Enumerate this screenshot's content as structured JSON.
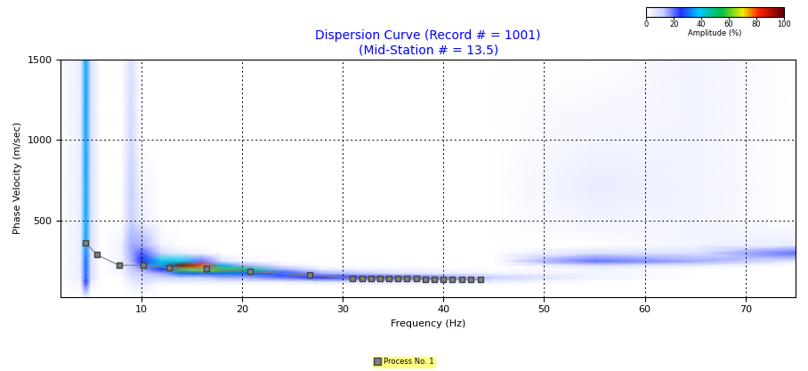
{
  "chart_data": {
    "type": "heatmap",
    "title": "Dispersion Curve (Record # = 1001)\n(Mid-Station # = 13.5)",
    "x_label": "Frequency (Hz)",
    "y_label": "Phase Velocity (m/sec)",
    "xlim": [
      2,
      75
    ],
    "ylim": [
      30,
      1500
    ],
    "xticks": [
      10,
      20,
      30,
      40,
      50,
      60,
      70
    ],
    "yticks": [
      500,
      1000,
      1500
    ],
    "grid": true,
    "legend": "lower center",
    "heatmap": {
      "x": [
        2,
        4,
        4.5,
        5,
        6,
        8,
        9,
        10,
        12,
        14,
        16,
        18,
        20,
        24,
        28,
        35,
        45,
        55,
        65,
        75
      ],
      "y": [
        30,
        100,
        125,
        150,
        175,
        200,
        225,
        250,
        300,
        350,
        500,
        700,
        1000,
        1500
      ],
      "cells": [
        [
          0,
          0,
          3,
          0,
          0,
          0,
          0,
          0,
          0,
          0,
          0,
          0,
          0,
          0,
          0,
          0,
          0,
          0,
          0,
          0
        ],
        [
          0,
          2,
          20,
          3,
          0,
          0,
          3,
          5,
          0,
          0,
          0,
          0,
          0,
          0,
          0,
          0,
          0,
          0,
          0,
          0
        ],
        [
          0,
          3,
          25,
          5,
          0,
          0,
          5,
          8,
          5,
          5,
          5,
          5,
          5,
          5,
          8,
          8,
          5,
          0,
          0,
          0
        ],
        [
          0,
          5,
          30,
          8,
          0,
          0,
          8,
          10,
          10,
          12,
          12,
          15,
          15,
          20,
          25,
          22,
          12,
          3,
          0,
          0
        ],
        [
          0,
          5,
          30,
          8,
          0,
          2,
          10,
          12,
          15,
          30,
          30,
          30,
          30,
          28,
          15,
          8,
          3,
          3,
          0,
          0
        ],
        [
          0,
          5,
          30,
          8,
          0,
          3,
          12,
          15,
          25,
          60,
          65,
          60,
          50,
          15,
          5,
          3,
          0,
          3,
          0,
          0
        ],
        [
          0,
          5,
          30,
          8,
          0,
          3,
          12,
          20,
          35,
          95,
          80,
          35,
          15,
          5,
          0,
          0,
          0,
          8,
          5,
          0
        ],
        [
          0,
          5,
          30,
          8,
          0,
          3,
          14,
          25,
          40,
          40,
          20,
          8,
          3,
          0,
          0,
          0,
          0,
          20,
          15,
          5
        ],
        [
          0,
          5,
          32,
          8,
          0,
          3,
          15,
          22,
          10,
          5,
          3,
          0,
          0,
          0,
          0,
          0,
          0,
          8,
          8,
          20
        ],
        [
          0,
          5,
          35,
          8,
          0,
          3,
          15,
          15,
          3,
          0,
          0,
          0,
          0,
          0,
          0,
          0,
          0,
          0,
          3,
          5
        ],
        [
          0,
          5,
          35,
          8,
          0,
          0,
          12,
          5,
          0,
          0,
          0,
          0,
          0,
          0,
          0,
          0,
          0,
          3,
          3,
          0
        ],
        [
          0,
          5,
          35,
          8,
          0,
          0,
          12,
          3,
          0,
          0,
          0,
          0,
          0,
          0,
          0,
          0,
          0,
          5,
          3,
          0
        ],
        [
          0,
          5,
          35,
          8,
          0,
          0,
          10,
          0,
          0,
          0,
          0,
          0,
          0,
          0,
          0,
          0,
          0,
          3,
          3,
          0
        ],
        [
          0,
          5,
          35,
          8,
          0,
          0,
          8,
          0,
          0,
          0,
          0,
          0,
          0,
          0,
          0,
          0,
          0,
          0,
          3,
          0
        ]
      ],
      "colorbar_label": "Amplitude (%)",
      "colorbar_range": [
        0,
        100
      ],
      "colorbar_ticks": [
        0,
        20,
        40,
        60,
        80,
        100
      ]
    },
    "series": [
      {
        "name": "Process No. 1",
        "type": "line",
        "color": "#808080",
        "marker": "s",
        "x": [
          4.5,
          5.6,
          7.8,
          10.2,
          12.8,
          16.5,
          20.8,
          26.7,
          31.0,
          31.9,
          32.8,
          33.7,
          34.6,
          35.5,
          36.4,
          37.3,
          38.2,
          39.1,
          40.0,
          40.9,
          41.8,
          42.7,
          43.7
        ],
        "values": [
          365,
          290,
          225,
          225,
          210,
          205,
          185,
          165,
          145,
          144,
          143,
          143,
          142,
          142,
          141,
          141,
          140,
          140,
          140,
          139,
          139,
          138,
          138
        ]
      }
    ]
  }
}
